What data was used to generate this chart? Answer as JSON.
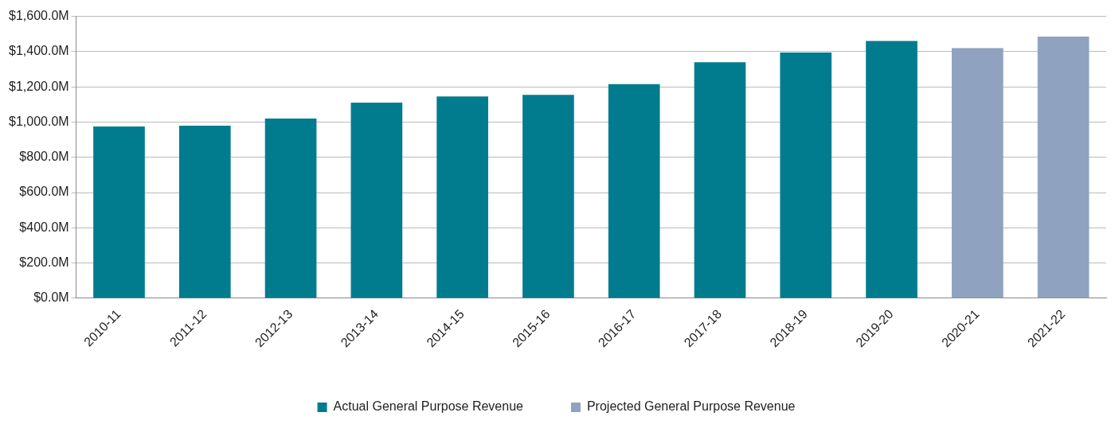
{
  "chart_data": {
    "type": "bar",
    "categories": [
      "2010-11",
      "2011-12",
      "2012-13",
      "2013-14",
      "2014-15",
      "2015-16",
      "2016-17",
      "2017-18",
      "2018-19",
      "2019-20",
      "2020-21",
      "2021-22"
    ],
    "series": [
      {
        "name": "Actual General Purpose Revenue",
        "color": "#007c8e",
        "values": [
          975,
          980,
          1020,
          1110,
          1145,
          1155,
          1215,
          1340,
          1395,
          1460,
          null,
          null
        ]
      },
      {
        "name": "Projected General Purpose Revenue",
        "color": "#8fa2c0",
        "values": [
          null,
          null,
          null,
          null,
          null,
          null,
          null,
          null,
          null,
          null,
          1420,
          1485
        ]
      }
    ],
    "ylim": [
      0,
      1600
    ],
    "yticks": [
      {
        "value": 0,
        "label": "$0.0M"
      },
      {
        "value": 200,
        "label": "$200.0M"
      },
      {
        "value": 400,
        "label": "$400.0M"
      },
      {
        "value": 600,
        "label": "$600.0M"
      },
      {
        "value": 800,
        "label": "$800.0M"
      },
      {
        "value": 1000,
        "label": "$1,000.0M"
      },
      {
        "value": 1200,
        "label": "$1,200.0M"
      },
      {
        "value": 1400,
        "label": "$1,400.0M"
      },
      {
        "value": 1600,
        "label": "$1,600.0M"
      }
    ],
    "grid": "y",
    "legend": "bottom"
  }
}
